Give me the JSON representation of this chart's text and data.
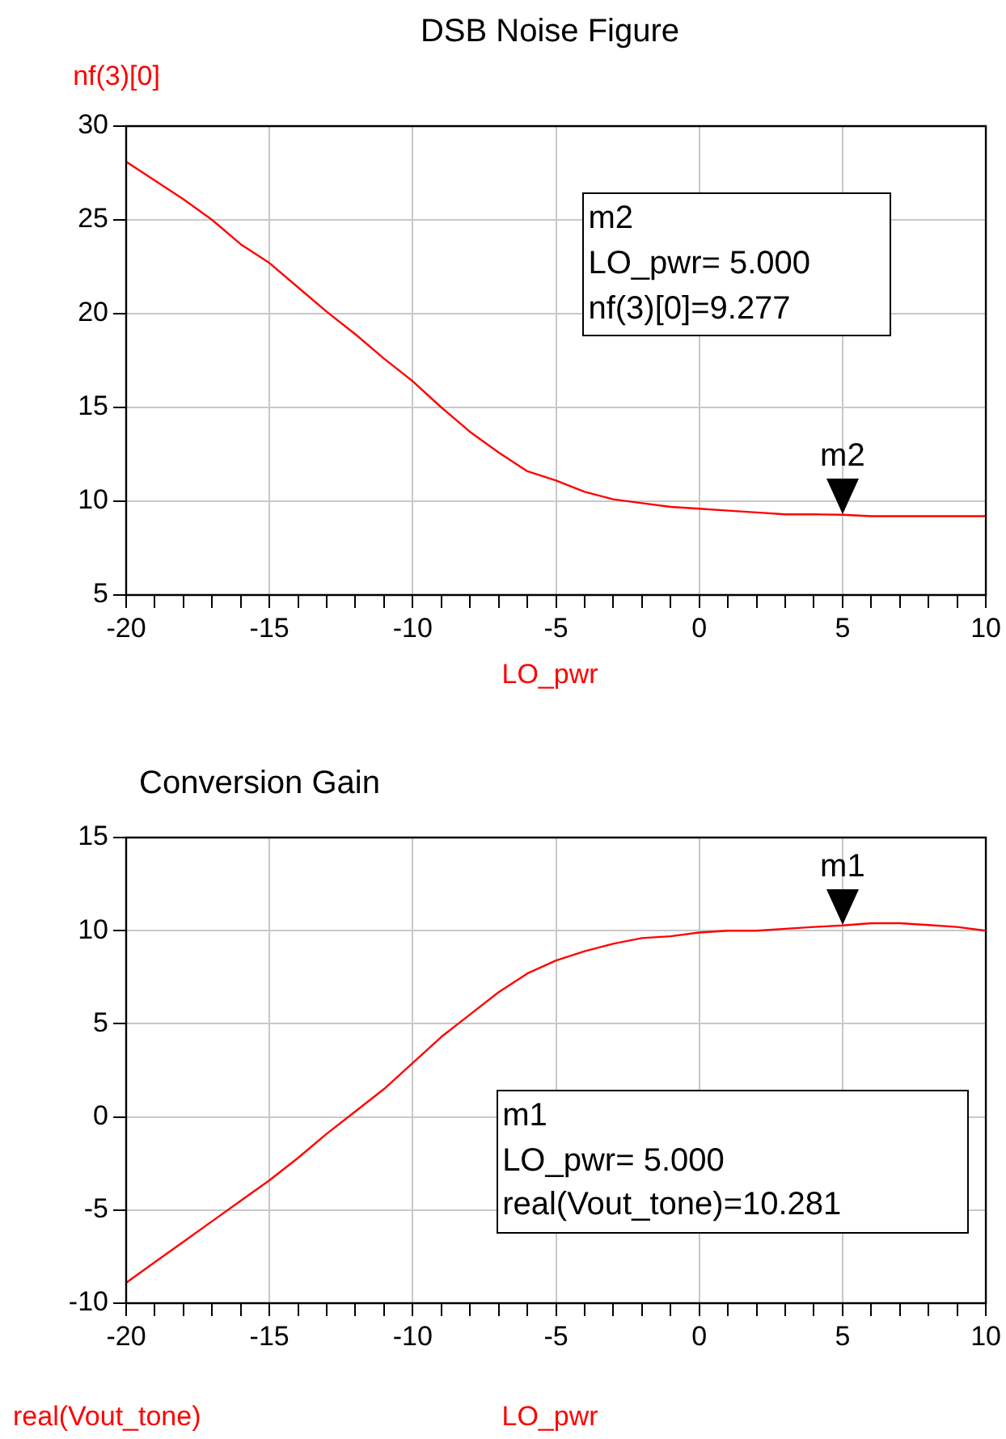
{
  "chart_data": [
    {
      "type": "line",
      "title": "DSB Noise Figure",
      "xlabel": "LO_pwr",
      "ylabel": "nf(3)[0]",
      "grid": true,
      "marker": "none",
      "line_style": "solid",
      "legend": false,
      "x": [
        -20,
        -19,
        -18,
        -17,
        -16,
        -15,
        -14,
        -13,
        -12,
        -11,
        -10,
        -9,
        -8,
        -7,
        -6,
        -5,
        -4,
        -3,
        -2,
        -1,
        0,
        1,
        2,
        3,
        4,
        5,
        6,
        7,
        8,
        9,
        10
      ],
      "series": [
        {
          "color": "#ff0000",
          "values": [
            28.1,
            27.1,
            26.1,
            25.0,
            23.7,
            22.7,
            21.4,
            20.1,
            18.9,
            17.6,
            16.4,
            15.0,
            13.7,
            12.6,
            11.6,
            11.1,
            10.5,
            10.1,
            9.9,
            9.7,
            9.6,
            9.5,
            9.4,
            9.3,
            9.3,
            9.277,
            9.2,
            9.2,
            9.2,
            9.2,
            9.2
          ]
        }
      ],
      "xlim": [
        -20,
        10
      ],
      "ylim": [
        5,
        30
      ],
      "xticks": [
        -20,
        {
          "value": -19,
          "label": null
        },
        {
          "value": -18,
          "label": null
        },
        {
          "value": -17,
          "label": null
        },
        {
          "value": -16,
          "label": null
        },
        -15,
        {
          "value": -14,
          "label": null
        },
        {
          "value": -13,
          "label": null
        },
        {
          "value": -12,
          "label": null
        },
        {
          "value": -11,
          "label": null
        },
        -10,
        {
          "value": -9,
          "label": null
        },
        {
          "value": -8,
          "label": null
        },
        {
          "value": -7,
          "label": null
        },
        {
          "value": -6,
          "label": null
        },
        -5,
        {
          "value": -4,
          "label": null
        },
        {
          "value": -3,
          "label": null
        },
        {
          "value": -2,
          "label": null
        },
        {
          "value": -1,
          "label": null
        },
        0,
        {
          "value": 1,
          "label": null
        },
        {
          "value": 2,
          "label": null
        },
        {
          "value": 3,
          "label": null
        },
        {
          "value": 4,
          "label": null
        },
        5,
        {
          "value": 6,
          "label": null
        },
        {
          "value": 7,
          "label": null
        },
        {
          "value": 8,
          "label": null
        },
        {
          "value": 9,
          "label": null
        },
        10
      ],
      "yticks": [
        5,
        10,
        15,
        20,
        25,
        30
      ],
      "annotations": [
        {
          "text": "m2",
          "x": 5,
          "y": 9.277
        },
        "m2",
        "LO_pwr= 5.000",
        "nf(3)[0]=9.277"
      ]
    },
    {
      "type": "line",
      "title": "Conversion Gain",
      "xlabel": "LO_pwr",
      "ylabel": "real(Vout_tone)",
      "grid": true,
      "marker": "none",
      "line_style": "solid",
      "legend": false,
      "x": [
        -20,
        -19,
        -18,
        -17,
        -16,
        -15,
        -14,
        -13,
        -12,
        -11,
        -10,
        -9,
        -8,
        -7,
        -6,
        -5,
        -4,
        -3,
        -2,
        -1,
        0,
        1,
        2,
        3,
        4,
        5,
        6,
        7,
        8,
        9,
        10
      ],
      "series": [
        {
          "color": "#ff0000",
          "values": [
            -8.9,
            -7.8,
            -6.7,
            -5.6,
            -4.5,
            -3.4,
            -2.2,
            -0.9,
            0.3,
            1.5,
            2.9,
            4.3,
            5.5,
            6.7,
            7.7,
            8.4,
            8.9,
            9.3,
            9.6,
            9.7,
            9.9,
            10.0,
            10.0,
            10.1,
            10.2,
            10.281,
            10.4,
            10.4,
            10.3,
            10.2,
            10.0
          ]
        }
      ],
      "xlim": [
        -20,
        10
      ],
      "ylim": [
        -10,
        15
      ],
      "xticks": [
        -20,
        {
          "value": -19,
          "label": null
        },
        {
          "value": -18,
          "label": null
        },
        {
          "value": -17,
          "label": null
        },
        {
          "value": -16,
          "label": null
        },
        -15,
        {
          "value": -14,
          "label": null
        },
        {
          "value": -13,
          "label": null
        },
        {
          "value": -12,
          "label": null
        },
        {
          "value": -11,
          "label": null
        },
        -10,
        {
          "value": -9,
          "label": null
        },
        {
          "value": -8,
          "label": null
        },
        {
          "value": -7,
          "label": null
        },
        {
          "value": -6,
          "label": null
        },
        -5,
        {
          "value": -4,
          "label": null
        },
        {
          "value": -3,
          "label": null
        },
        {
          "value": -2,
          "label": null
        },
        {
          "value": -1,
          "label": null
        },
        0,
        {
          "value": 1,
          "label": null
        },
        {
          "value": 2,
          "label": null
        },
        {
          "value": 3,
          "label": null
        },
        {
          "value": 4,
          "label": null
        },
        5,
        {
          "value": 6,
          "label": null
        },
        {
          "value": 7,
          "label": null
        },
        {
          "value": 8,
          "label": null
        },
        {
          "value": 9,
          "label": null
        },
        10
      ],
      "yticks": [
        -10,
        -5,
        0,
        5,
        10,
        15
      ],
      "annotations": [
        {
          "text": "m1",
          "x": 5,
          "y": 10.281
        },
        "m1",
        "LO_pwr= 5.000",
        "real(Vout_tone)=10.281"
      ]
    }
  ]
}
